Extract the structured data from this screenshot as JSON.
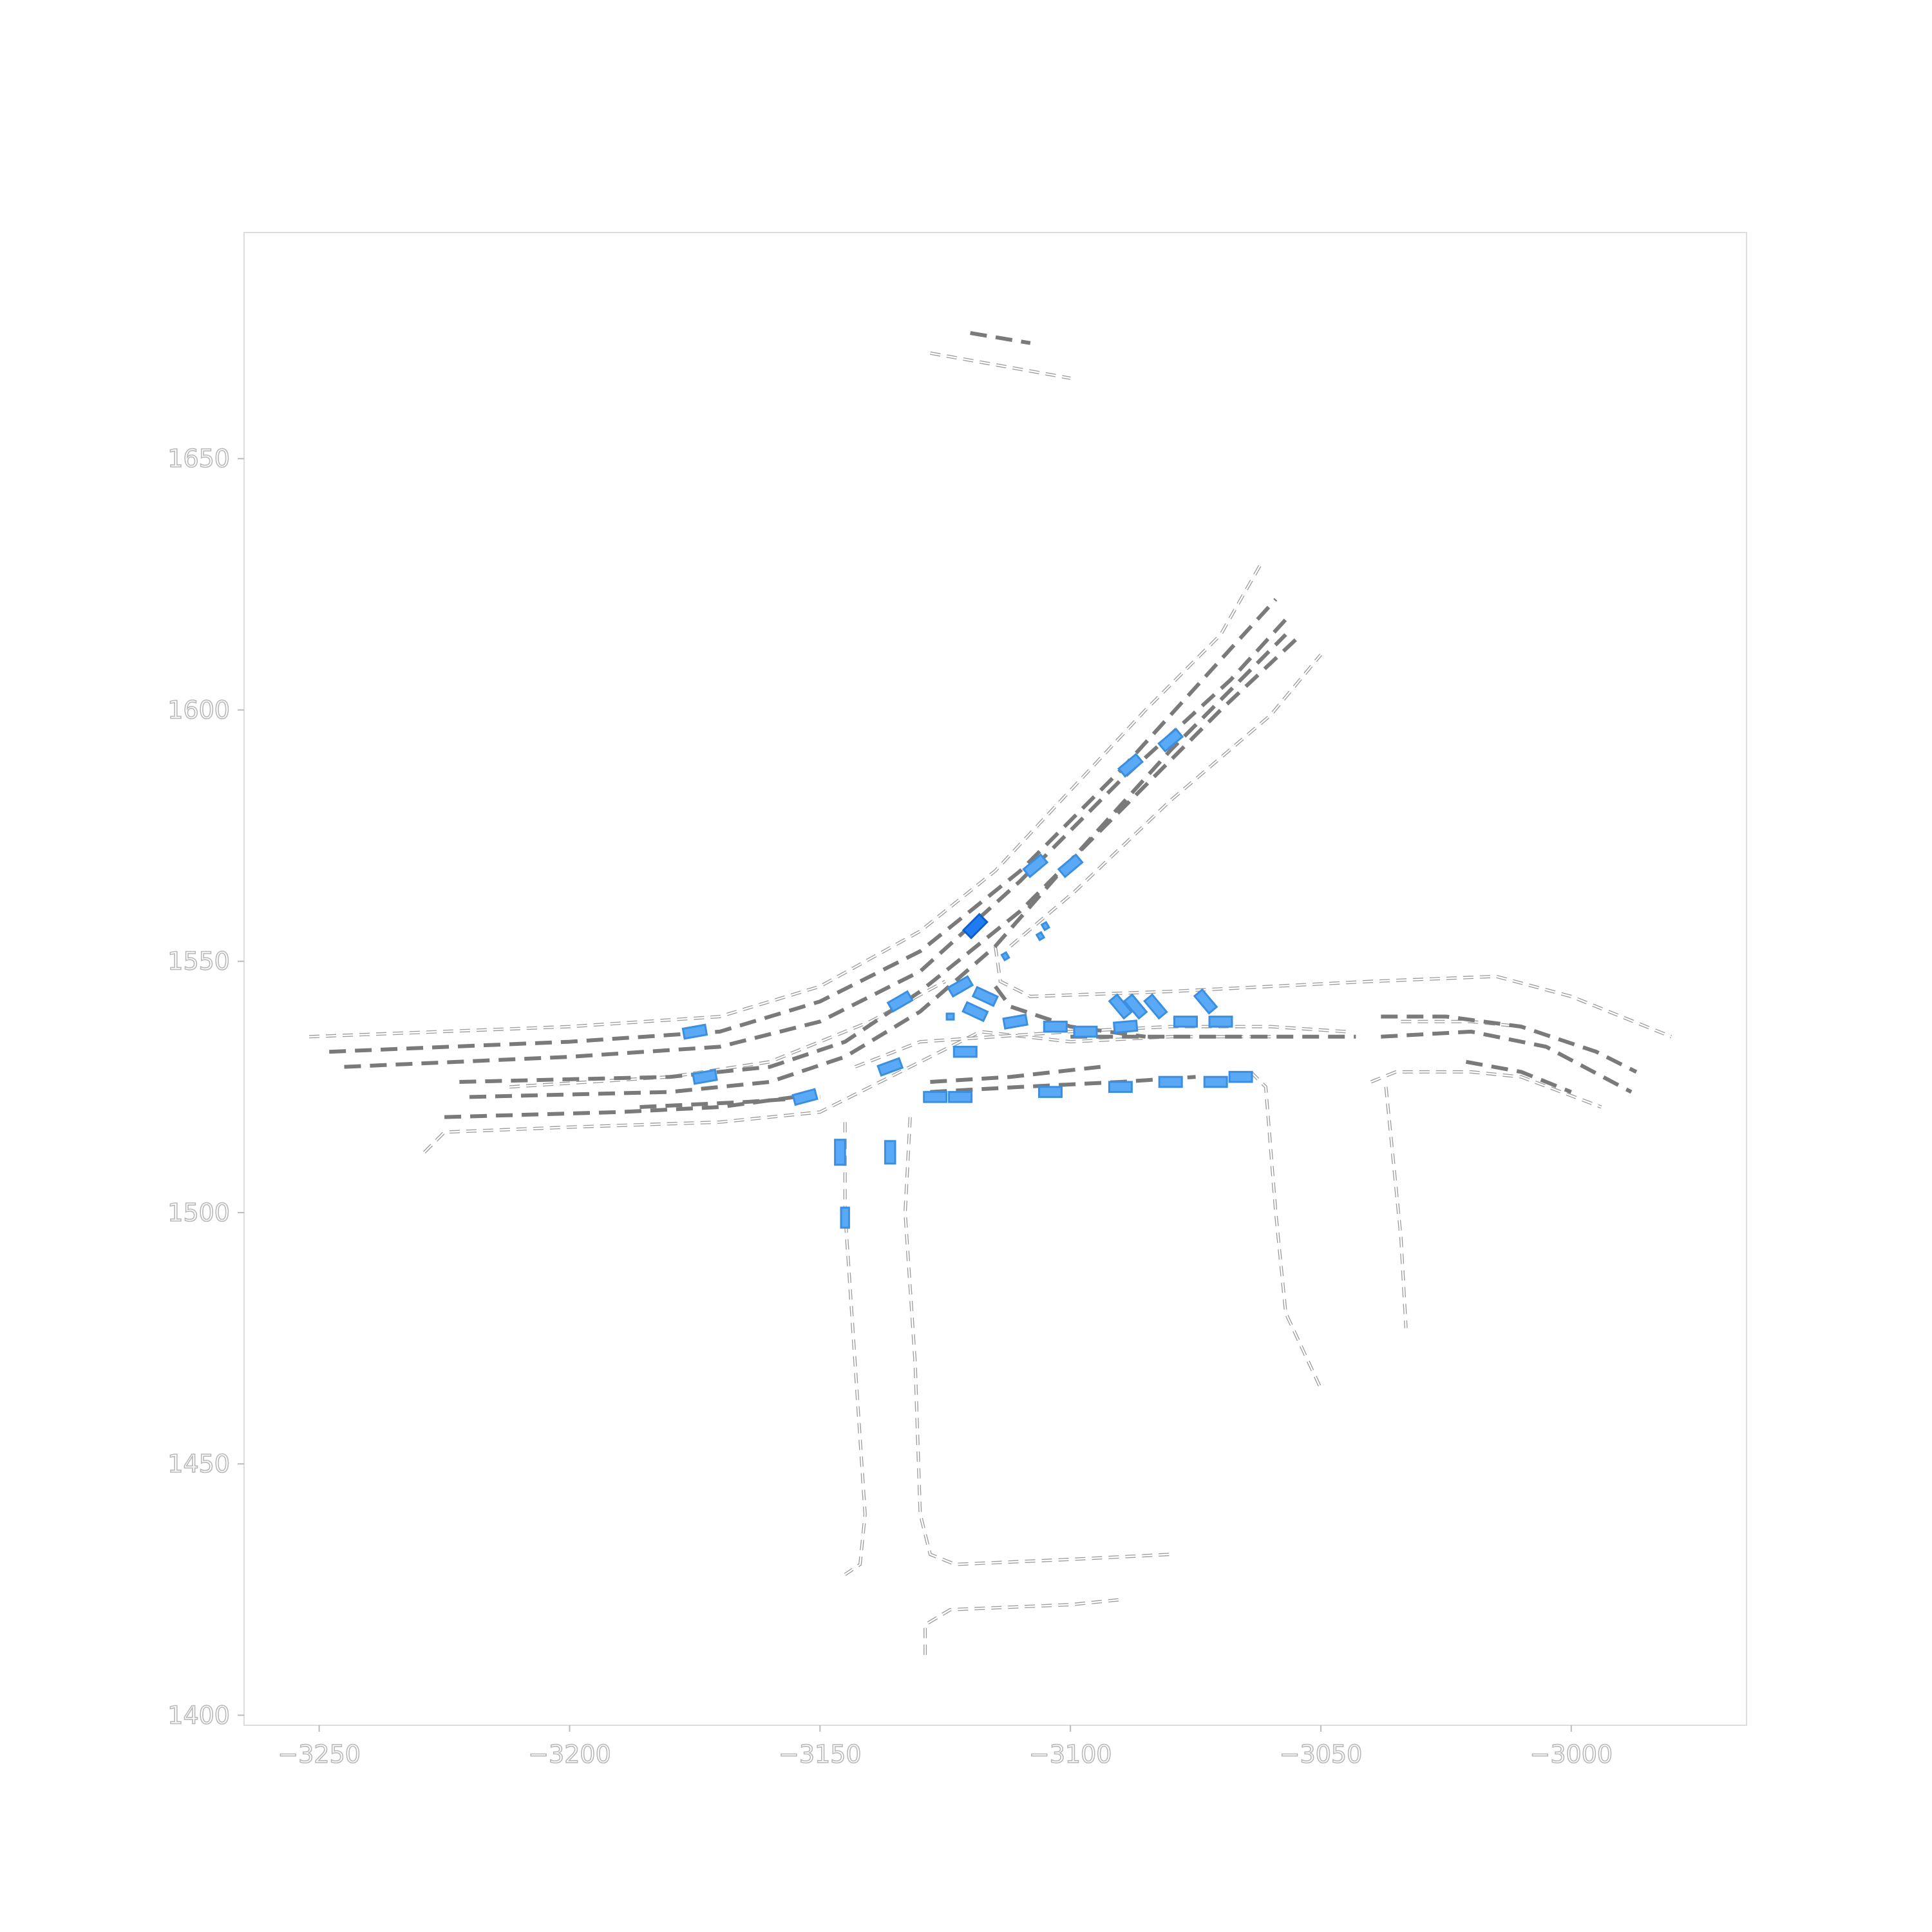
{
  "chart_data": {
    "type": "scatter",
    "title": "",
    "xlabel": "",
    "ylabel": "",
    "xlim": [
      -3265,
      -2965
    ],
    "ylim": [
      1398,
      1695
    ],
    "x_ticks": [
      -3250,
      -3200,
      -3150,
      -3100,
      -3050,
      -3000
    ],
    "y_ticks": [
      1400,
      1450,
      1500,
      1550,
      1600,
      1650
    ],
    "x_tick_labels": [
      "−3250",
      "−3200",
      "−3150",
      "−3100",
      "−3050",
      "−3000"
    ],
    "y_tick_labels": [
      "1400",
      "1450",
      "1500",
      "1550",
      "1600",
      "1650"
    ],
    "colors": {
      "lane_center": "#7a7a7a",
      "road_edge": "#9a9a9a",
      "agent": "#5aa9f7",
      "ego": "#1f7cf0",
      "frame": "#dddddd"
    },
    "lane_centerlines": [
      [
        [
          -3248,
          1532
        ],
        [
          -3200,
          1534
        ],
        [
          -3170,
          1536
        ],
        [
          -3150,
          1542
        ],
        [
          -3130,
          1552
        ],
        [
          -3110,
          1568
        ],
        [
          -3090,
          1588
        ],
        [
          -3070,
          1610
        ],
        [
          -3059,
          1622
        ]
      ],
      [
        [
          -3245,
          1529
        ],
        [
          -3200,
          1531
        ],
        [
          -3170,
          1533
        ],
        [
          -3150,
          1538
        ],
        [
          -3130,
          1548
        ],
        [
          -3110,
          1566
        ],
        [
          -3090,
          1586
        ],
        [
          -3068,
          1606
        ],
        [
          -3057,
          1618
        ]
      ],
      [
        [
          -3222,
          1526
        ],
        [
          -3180,
          1527
        ],
        [
          -3160,
          1529
        ],
        [
          -3145,
          1534
        ],
        [
          -3130,
          1544
        ],
        [
          -3110,
          1560
        ],
        [
          -3090,
          1580
        ],
        [
          -3070,
          1600
        ],
        [
          -3055,
          1614
        ]
      ],
      [
        [
          -3220,
          1523
        ],
        [
          -3180,
          1524
        ],
        [
          -3160,
          1526
        ],
        [
          -3145,
          1531
        ],
        [
          -3130,
          1540
        ],
        [
          -3115,
          1553
        ],
        [
          -3100,
          1570
        ],
        [
          -3080,
          1592
        ],
        [
          -3057,
          1615
        ]
      ],
      [
        [
          -3225,
          1519
        ],
        [
          -3190,
          1520
        ],
        [
          -3170,
          1521
        ],
        [
          -3155,
          1523
        ]
      ],
      [
        [
          -3186,
          1521
        ],
        [
          -3165,
          1522
        ],
        [
          -3150,
          1523
        ]
      ],
      [
        [
          -3128,
          1524
        ],
        [
          -3110,
          1525
        ],
        [
          -3090,
          1526
        ],
        [
          -3075,
          1527
        ]
      ],
      [
        [
          -3128,
          1526
        ],
        [
          -3112,
          1527
        ],
        [
          -3094,
          1529
        ]
      ],
      [
        [
          -3100,
          1535
        ],
        [
          -3080,
          1535
        ],
        [
          -3060,
          1535
        ],
        [
          -3043,
          1535
        ]
      ],
      [
        [
          -3115,
          1545
        ],
        [
          -3112,
          1541
        ],
        [
          -3100,
          1537
        ],
        [
          -3085,
          1535
        ]
      ],
      [
        [
          -3038,
          1539
        ],
        [
          -3025,
          1539
        ],
        [
          -3010,
          1537
        ],
        [
          -2995,
          1532
        ],
        [
          -2987,
          1528
        ]
      ],
      [
        [
          -3038,
          1535
        ],
        [
          -3020,
          1536
        ],
        [
          -3005,
          1533
        ],
        [
          -2988,
          1524
        ]
      ],
      [
        [
          -3021,
          1530
        ],
        [
          -3010,
          1528
        ],
        [
          -3000,
          1524
        ]
      ],
      [
        [
          -3120,
          1675
        ],
        [
          -3108,
          1673
        ]
      ]
    ],
    "road_edges": [
      [
        [
          -3252,
          1535
        ],
        [
          -3200,
          1537
        ],
        [
          -3170,
          1539
        ],
        [
          -3150,
          1545
        ],
        [
          -3130,
          1556
        ],
        [
          -3115,
          1568
        ],
        [
          -3100,
          1584
        ],
        [
          -3085,
          1600
        ],
        [
          -3070,
          1615
        ],
        [
          -3062,
          1629
        ]
      ],
      [
        [
          -3212,
          1525
        ],
        [
          -3180,
          1527
        ],
        [
          -3160,
          1530
        ],
        [
          -3140,
          1538
        ],
        [
          -3125,
          1546
        ]
      ],
      [
        [
          -3229,
          1512
        ],
        [
          -3225,
          1516
        ],
        [
          -3200,
          1517
        ],
        [
          -3170,
          1518
        ],
        [
          -3150,
          1520
        ],
        [
          -3140,
          1525
        ],
        [
          -3128,
          1531
        ],
        [
          -3118,
          1536
        ],
        [
          -3100,
          1534
        ],
        [
          -3080,
          1535
        ],
        [
          -3060,
          1535
        ]
      ],
      [
        [
          -3145,
          1518
        ],
        [
          -3145,
          1500
        ],
        [
          -3143,
          1470
        ],
        [
          -3141,
          1440
        ],
        [
          -3142,
          1430
        ],
        [
          -3145,
          1428
        ]
      ],
      [
        [
          -3132,
          1519
        ],
        [
          -3133,
          1500
        ],
        [
          -3131,
          1470
        ],
        [
          -3130,
          1440
        ],
        [
          -3128,
          1432
        ],
        [
          -3123,
          1430
        ],
        [
          -3100,
          1431
        ],
        [
          -3080,
          1432
        ]
      ],
      [
        [
          -3129,
          1412
        ],
        [
          -3129,
          1418
        ],
        [
          -3124,
          1421
        ],
        [
          -3100,
          1422
        ],
        [
          -3090,
          1423
        ]
      ],
      [
        [
          -3115,
          1553
        ],
        [
          -3114,
          1546
        ],
        [
          -3108,
          1543
        ],
        [
          -3080,
          1544
        ],
        [
          -3040,
          1546
        ],
        [
          -3015,
          1547
        ],
        [
          -3000,
          1543
        ],
        [
          -2980,
          1535
        ]
      ],
      [
        [
          -3143,
          1529
        ],
        [
          -3130,
          1534
        ],
        [
          -3100,
          1536
        ],
        [
          -3080,
          1537
        ],
        [
          -3060,
          1537
        ],
        [
          -3045,
          1536
        ]
      ],
      [
        [
          -3064,
          1528
        ],
        [
          -3061,
          1525
        ],
        [
          -3059,
          1500
        ],
        [
          -3057,
          1480
        ],
        [
          -3050,
          1465
        ]
      ],
      [
        [
          -3037,
          1525
        ],
        [
          -3036,
          1515
        ],
        [
          -3034,
          1495
        ],
        [
          -3033,
          1477
        ]
      ],
      [
        [
          -3040,
          1526
        ],
        [
          -3035,
          1528
        ],
        [
          -3020,
          1528
        ],
        [
          -3010,
          1527
        ],
        [
          -2994,
          1521
        ]
      ],
      [
        [
          -3034,
          1538
        ],
        [
          -3020,
          1538
        ],
        [
          -3010,
          1537
        ]
      ],
      [
        [
          -3128,
          1671
        ],
        [
          -3100,
          1666
        ]
      ],
      [
        [
          -3112,
          1553
        ],
        [
          -3099,
          1564
        ],
        [
          -3080,
          1582
        ],
        [
          -3060,
          1599
        ],
        [
          -3050,
          1611
        ]
      ]
    ],
    "agents": [
      [
        -3100,
        1569,
        4.5,
        2,
        40
      ],
      [
        -3107,
        1569,
        4.5,
        2,
        40
      ],
      [
        -3088,
        1589,
        4.5,
        2,
        40
      ],
      [
        -3080,
        1594,
        4.5,
        2,
        40
      ],
      [
        -3122,
        1545,
        4.5,
        2,
        30
      ],
      [
        -3134,
        1542,
        4.5,
        2,
        30
      ],
      [
        -3117,
        1543,
        4.5,
        2,
        -25
      ],
      [
        -3119,
        1540,
        4.5,
        2,
        -25
      ],
      [
        -3111,
        1538,
        4.5,
        2,
        10
      ],
      [
        -3103,
        1537,
        4.5,
        2,
        0
      ],
      [
        -3097,
        1536,
        4.5,
        2,
        0
      ],
      [
        -3089,
        1537,
        4.5,
        2,
        5
      ],
      [
        -3077,
        1538,
        4.5,
        2,
        0
      ],
      [
        -3070,
        1538,
        4.5,
        2,
        0
      ],
      [
        -3090,
        1541,
        4.5,
        2,
        -50
      ],
      [
        -3087,
        1541,
        4.5,
        2,
        -50
      ],
      [
        -3083,
        1541,
        4.5,
        2,
        -50
      ],
      [
        -3073,
        1542,
        4.5,
        2,
        -50
      ],
      [
        -3121,
        1532,
        4.5,
        2,
        0
      ],
      [
        -3136,
        1529,
        4.5,
        2,
        20
      ],
      [
        -3153,
        1523,
        4.5,
        2,
        15
      ],
      [
        -3175,
        1536,
        4.5,
        2,
        10
      ],
      [
        -3173,
        1527,
        4.5,
        2,
        10
      ],
      [
        -3127,
        1523,
        4.5,
        2,
        0
      ],
      [
        -3122,
        1523,
        4.5,
        2,
        0
      ],
      [
        -3104,
        1524,
        4.5,
        2,
        0
      ],
      [
        -3090,
        1525,
        4.5,
        2,
        0
      ],
      [
        -3080,
        1526,
        4.5,
        2,
        0
      ],
      [
        -3071,
        1526,
        4.5,
        2,
        0
      ],
      [
        -3066,
        1527,
        4.5,
        2,
        0
      ],
      [
        -3146,
        1512,
        2,
        5,
        0
      ],
      [
        -3136,
        1512,
        2,
        4.5,
        0
      ],
      [
        -3145,
        1499,
        1.6,
        4,
        0
      ],
      [
        -3113,
        1551,
        1,
        1.2,
        30
      ],
      [
        -3105,
        1557,
        1,
        1.2,
        30
      ],
      [
        -3106,
        1555,
        1,
        1.2,
        30
      ],
      [
        -3124,
        1539,
        1.4,
        1.2,
        0
      ]
    ],
    "ego": [
      -3119,
      1557,
      4.5,
      2.2,
      45
    ]
  }
}
